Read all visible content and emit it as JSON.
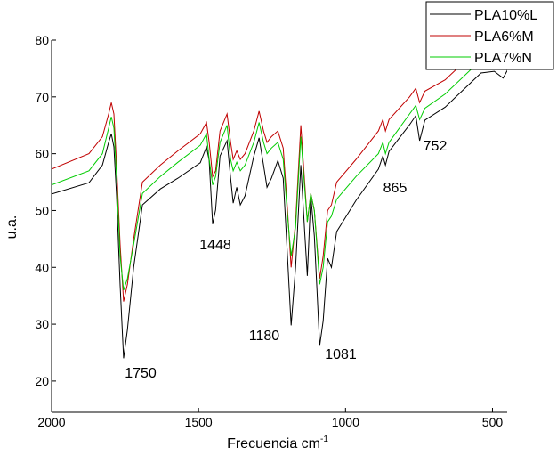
{
  "chart_data": {
    "type": "line",
    "x_label": {
      "text": "Frecuencia cm",
      "sup": "-1"
    },
    "y_label": "u.a.",
    "x": [
      2000,
      1873,
      1827,
      1806,
      1797,
      1788,
      1779,
      1767,
      1755,
      1742,
      1721,
      1691,
      1630,
      1570,
      1494,
      1473,
      1464,
      1452,
      1442,
      1427,
      1403,
      1391,
      1382,
      1370,
      1358,
      1342,
      1312,
      1294,
      1279,
      1267,
      1252,
      1230,
      1212,
      1197,
      1185,
      1170,
      1152,
      1139,
      1130,
      1118,
      1106,
      1088,
      1076,
      1061,
      1048,
      1030,
      964,
      888,
      873,
      864,
      852,
      782,
      761,
      748,
      730,
      661,
      539,
      494,
      464,
      448
    ],
    "series": [
      {
        "name": "PLA10%L",
        "color": "#000000",
        "values": [
          52.9,
          54.9,
          58,
          62,
          63.5,
          61.2,
          52.6,
          36.9,
          24,
          29,
          40,
          51,
          53.8,
          55.7,
          58.4,
          61.2,
          58.8,
          47.6,
          50.1,
          59.6,
          62.3,
          55.7,
          51.3,
          54.1,
          51,
          52.6,
          59.6,
          62.8,
          58,
          54.1,
          55.7,
          58.8,
          55.7,
          41.6,
          29.8,
          40,
          58,
          46.3,
          38.5,
          52.6,
          45.5,
          26.2,
          30.6,
          41.6,
          40,
          46.3,
          51.8,
          57.3,
          59.6,
          58,
          60.4,
          65.1,
          66.7,
          62.3,
          65.9,
          68.2,
          74.2,
          74.5,
          73.3,
          74.8
        ]
      },
      {
        "name": "PLA6%M",
        "color": "#c00000",
        "values": [
          57.3,
          60,
          63,
          67,
          69,
          67,
          58,
          44,
          34,
          37,
          45,
          55,
          58,
          60.5,
          63.5,
          65.5,
          62,
          56,
          57,
          64,
          67,
          62,
          59,
          60.5,
          59,
          60,
          64,
          67.5,
          64,
          62,
          63,
          64,
          61,
          50,
          40,
          48,
          65,
          55,
          48,
          53,
          50,
          38,
          42,
          50,
          51,
          55,
          59,
          64,
          66,
          64,
          66,
          70,
          71.5,
          69,
          71,
          73,
          79,
          79.5,
          79.5,
          79.5
        ]
      },
      {
        "name": "PLA7%N",
        "color": "#00cc00",
        "values": [
          54.5,
          57,
          60,
          64.5,
          66.5,
          64.5,
          56,
          42,
          36,
          38,
          44,
          53,
          56,
          58.5,
          61.5,
          63.5,
          59,
          54.5,
          56,
          62,
          65,
          59,
          57,
          58.5,
          57,
          58,
          62,
          65.5,
          62,
          60,
          61,
          62,
          59,
          49,
          42,
          47,
          63,
          54,
          48,
          53,
          50,
          37,
          40,
          48,
          49,
          52,
          56,
          60,
          62,
          60,
          62,
          67,
          68.5,
          66,
          68,
          70.5,
          76.5,
          77.5,
          77,
          78
        ]
      }
    ],
    "xlim": [
      2000,
      450
    ],
    "ylim": [
      14.5,
      80
    ],
    "xticks": [
      2000,
      1500,
      1000,
      500
    ],
    "yticks": [
      20,
      30,
      40,
      50,
      60,
      70,
      80
    ],
    "legend": "upper right",
    "annotations": [
      "1750",
      "1448",
      "1180",
      "1081",
      "865",
      "752"
    ]
  }
}
